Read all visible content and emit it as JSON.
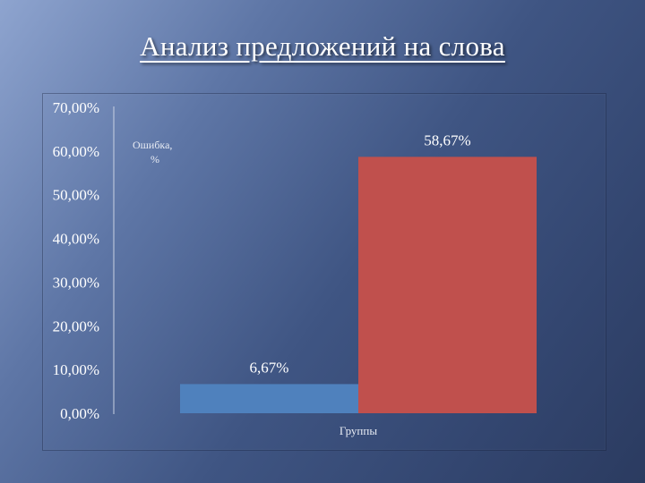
{
  "slide": {
    "title": "Анализ предложений на слова"
  },
  "chart_data": {
    "type": "bar",
    "title": "",
    "xlabel": "Группы",
    "ylabel": "",
    "legend": {
      "lines": [
        "Ошибка,",
        "%"
      ],
      "placement": "top-left"
    },
    "ylim": [
      0,
      70
    ],
    "yticks": [
      "70,00%",
      "60,00%",
      "50,00%",
      "40,00%",
      "30,00%",
      "20,00%",
      "10,00%",
      "0,00%"
    ],
    "ytick_values": [
      70,
      60,
      50,
      40,
      30,
      20,
      10,
      0
    ],
    "categories": [
      "",
      ""
    ],
    "values": [
      6.67,
      58.67
    ],
    "value_labels": [
      "6,67%",
      "58,67%"
    ],
    "colors": [
      "#4f81bd",
      "#c0504d"
    ],
    "grid": false
  }
}
